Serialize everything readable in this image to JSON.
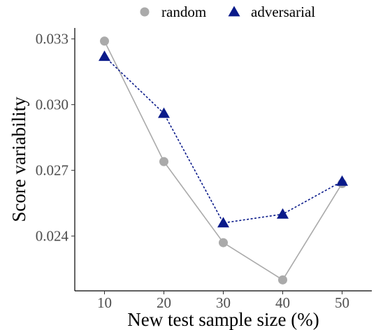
{
  "chart_data": {
    "type": "line",
    "title": "",
    "xlabel": "New test sample size (%)",
    "ylabel": "Score variability",
    "x": [
      10,
      20,
      30,
      40,
      50
    ],
    "xlim": [
      5,
      55
    ],
    "ylim": [
      0.0215,
      0.0335
    ],
    "x_ticks": [
      10,
      20,
      30,
      40,
      50
    ],
    "y_ticks": [
      0.024,
      0.027,
      0.03,
      0.033
    ],
    "y_tick_labels": [
      "0.024",
      "0.027",
      "0.030",
      "0.033"
    ],
    "grid": false,
    "legend_position": "top",
    "series": [
      {
        "name": "random",
        "values": [
          0.0329,
          0.0274,
          0.0237,
          0.022,
          0.0264
        ],
        "color": "#aaaaaa",
        "marker": "circle",
        "line_style": "solid"
      },
      {
        "name": "adversarial",
        "values": [
          0.0322,
          0.0296,
          0.0246,
          0.025,
          0.0265
        ],
        "color": "#0a1a8a",
        "marker": "triangle",
        "line_style": "dashed"
      }
    ]
  }
}
